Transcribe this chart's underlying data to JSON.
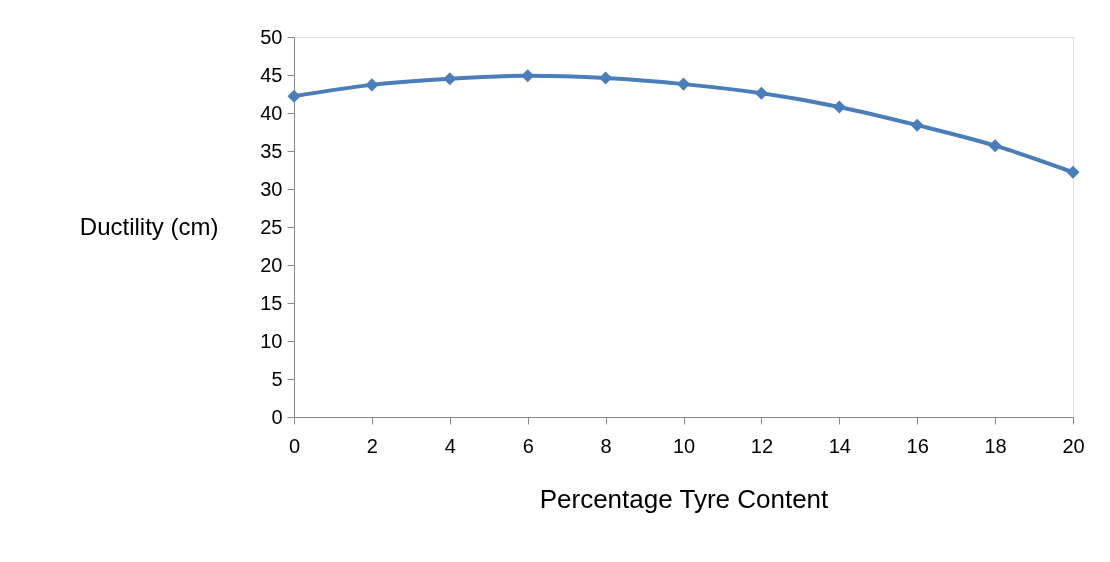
{
  "chart_data": {
    "type": "line",
    "xlabel": "Percentage Tyre Content",
    "ylabel": "Ductility (cm)",
    "x": [
      0,
      2,
      4,
      6,
      8,
      10,
      12,
      14,
      16,
      18,
      20
    ],
    "series": [
      {
        "color": "#4a7ebb",
        "values": [
          42.2,
          43.7,
          44.5,
          44.9,
          44.6,
          43.8,
          42.6,
          40.8,
          38.4,
          35.7,
          32.2
        ]
      }
    ],
    "xlim": [
      0,
      20
    ],
    "xticks": [
      0,
      2,
      4,
      6,
      8,
      10,
      12,
      14,
      16,
      18,
      20
    ],
    "ylim": [
      0,
      50
    ],
    "yticks": [
      0,
      5,
      10,
      15,
      20,
      25,
      30,
      35,
      40,
      45,
      50
    ],
    "grid": false,
    "marker": "diamond",
    "line_style": "solid"
  }
}
